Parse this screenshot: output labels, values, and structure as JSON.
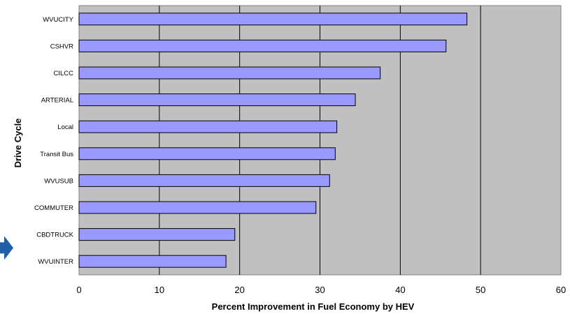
{
  "chart_data": {
    "type": "bar",
    "orientation": "horizontal",
    "categories": [
      "WVUCITY",
      "CSHVR",
      "CILCC",
      "ARTERIAL",
      "Local",
      "Transit Bus",
      "WVUSUB",
      "COMMUTER",
      "CBDTRUCK",
      "WVUINTER"
    ],
    "values": [
      48.3,
      45.7,
      37.5,
      34.4,
      32.1,
      31.9,
      31.2,
      29.5,
      19.4,
      18.3
    ],
    "xlabel": "Percent Improvement in Fuel Economy by HEV",
    "ylabel": "Drive Cycle",
    "xlim": [
      0,
      60
    ],
    "xticks": [
      "0",
      "10",
      "20",
      "30",
      "40",
      "50",
      "60"
    ],
    "grid": true,
    "bar_color": "#9999ff",
    "plot_background": "#c0c0c0",
    "arrow_marker_category": "CBDTRUCK",
    "arrow_color": "#1f5fa8"
  }
}
